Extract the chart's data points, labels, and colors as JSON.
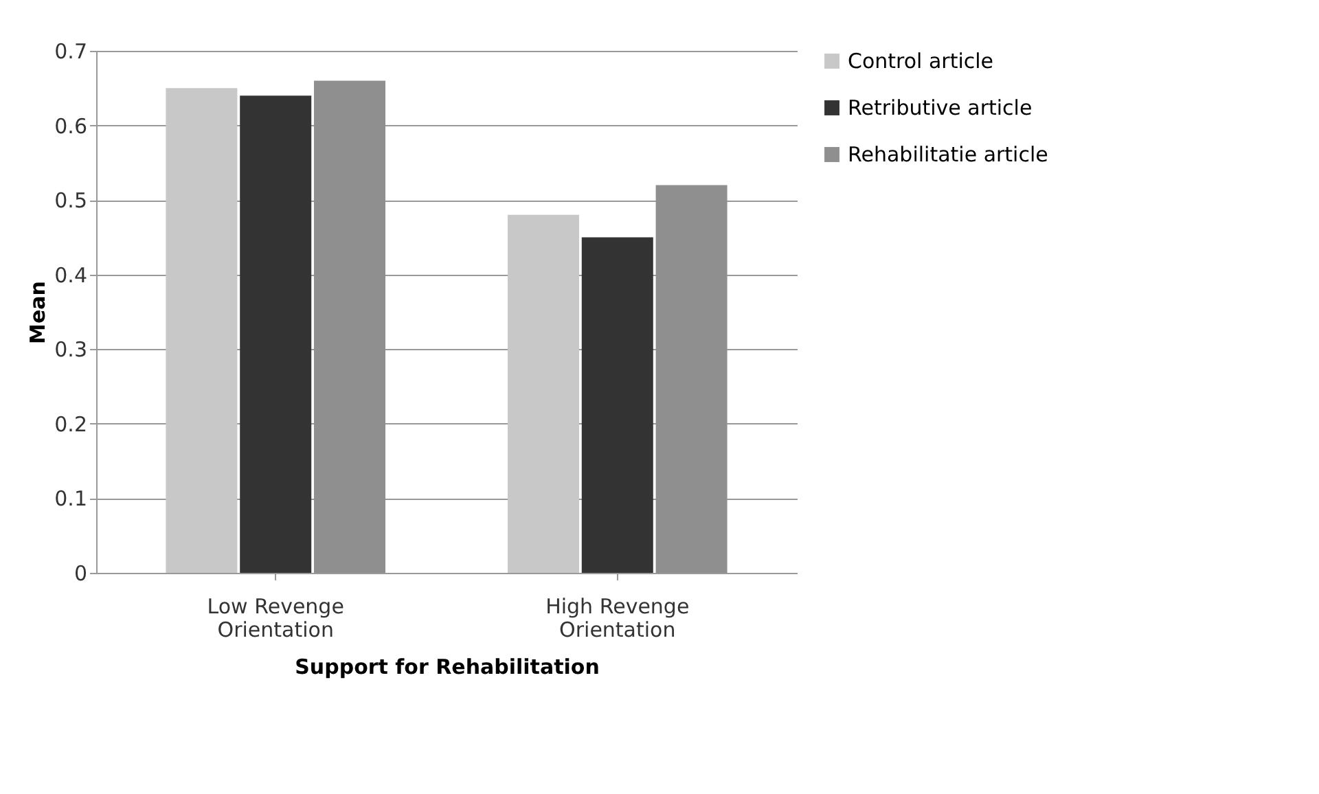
{
  "chart_data": {
    "type": "bar",
    "xlabel": "Support for Rehabilitation",
    "ylabel": "Mean",
    "categories": [
      "Low Revenge Orientation",
      "High Revenge Orientation"
    ],
    "series": [
      {
        "name": "Control article",
        "color": "#c8c8c8",
        "values": [
          0.65,
          0.48
        ]
      },
      {
        "name": "Retributive article",
        "color": "#333333",
        "values": [
          0.64,
          0.45
        ]
      },
      {
        "name": "Rehabilitatie article",
        "color": "#8f8f8f",
        "values": [
          0.66,
          0.52
        ]
      }
    ],
    "ylim": [
      0,
      0.7
    ],
    "yticks": [
      0,
      0.1,
      0.2,
      0.3,
      0.4,
      0.5,
      0.6,
      0.7
    ],
    "grid": "y",
    "legend": "right"
  }
}
